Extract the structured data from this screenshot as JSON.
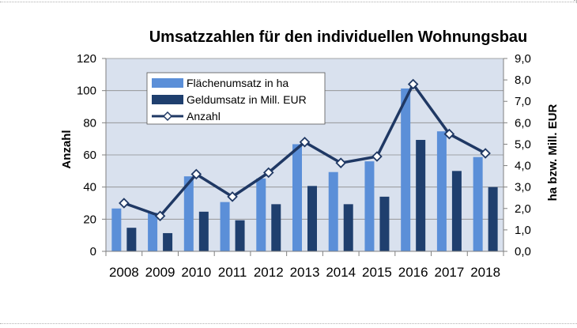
{
  "chart_data": {
    "type": "bar",
    "title": "Umsatzzahlen für den individuellen Wohnungsbau",
    "categories": [
      "2008",
      "2009",
      "2010",
      "2011",
      "2012",
      "2013",
      "2014",
      "2015",
      "2016",
      "2017",
      "2018"
    ],
    "ylabel_left": "Anzahl",
    "ylabel_right": "ha bzw. Mill. EUR",
    "ylim_left": [
      0,
      120
    ],
    "ylim_right": [
      0,
      9
    ],
    "yticks_left": [
      "0",
      "20",
      "40",
      "60",
      "80",
      "100",
      "120"
    ],
    "yticks_right": [
      "0,0",
      "1,0",
      "2,0",
      "3,0",
      "4,0",
      "5,0",
      "6,0",
      "7,0",
      "8,0",
      "9,0"
    ],
    "legend_position": "top-left",
    "grid": true,
    "series": [
      {
        "name": "Flächenumsatz in ha",
        "type": "bar",
        "axis": "right",
        "color": "#5b8fd8",
        "values": [
          2.0,
          1.8,
          3.5,
          2.3,
          3.4,
          5.0,
          3.7,
          4.2,
          7.6,
          5.6,
          4.4
        ]
      },
      {
        "name": "Geldumsatz in Mill. EUR",
        "type": "bar",
        "axis": "right",
        "color": "#1f3f6e",
        "values": [
          1.1,
          0.85,
          1.85,
          1.45,
          2.2,
          3.05,
          2.2,
          2.55,
          5.2,
          3.75,
          3.0
        ]
      },
      {
        "name": "Anzahl",
        "type": "line",
        "axis": "left",
        "color": "#1f3864",
        "marker": "diamond",
        "values": [
          30,
          22,
          48,
          34,
          49,
          68,
          55,
          59,
          104,
          73,
          61
        ]
      }
    ]
  }
}
